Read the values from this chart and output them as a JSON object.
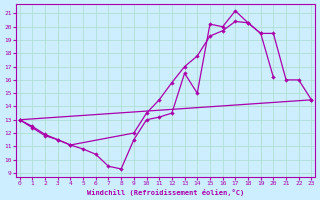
{
  "xlabel": "Windchill (Refroidissement éolien,°C)",
  "yticks": [
    9,
    10,
    11,
    12,
    13,
    14,
    15,
    16,
    17,
    18,
    19,
    20,
    21
  ],
  "xticks": [
    0,
    1,
    2,
    3,
    4,
    5,
    6,
    7,
    8,
    9,
    10,
    11,
    12,
    13,
    14,
    15,
    16,
    17,
    18,
    19,
    20,
    21,
    22,
    23
  ],
  "color": "#aa00aa",
  "bg_color": "#cceeff",
  "grid_color": "#aaddcc",
  "l1x": [
    0,
    1,
    2,
    3,
    4,
    5,
    6,
    7,
    8,
    9,
    10,
    11,
    12,
    13,
    14,
    15,
    16,
    17,
    18,
    19,
    20
  ],
  "l1y": [
    13.0,
    12.5,
    11.9,
    11.5,
    11.1,
    10.8,
    10.4,
    9.5,
    9.3,
    11.5,
    13.0,
    13.2,
    13.5,
    16.5,
    15.0,
    20.2,
    20.0,
    21.2,
    20.3,
    19.5,
    16.2
  ],
  "l2x": [
    0,
    23
  ],
  "l2y": [
    13.0,
    14.5
  ],
  "l3x": [
    0,
    1,
    2,
    3,
    4,
    9,
    10,
    11,
    12,
    13,
    14,
    15,
    16,
    17,
    18,
    19,
    20,
    21,
    22,
    23
  ],
  "l3y": [
    13.0,
    12.4,
    11.8,
    11.5,
    11.1,
    12.0,
    13.5,
    14.5,
    15.8,
    17.0,
    17.8,
    19.3,
    19.7,
    20.4,
    20.3,
    19.5,
    19.5,
    16.0,
    16.0,
    14.5
  ],
  "xlim": [
    -0.3,
    23.3
  ],
  "ylim": [
    8.7,
    21.7
  ]
}
